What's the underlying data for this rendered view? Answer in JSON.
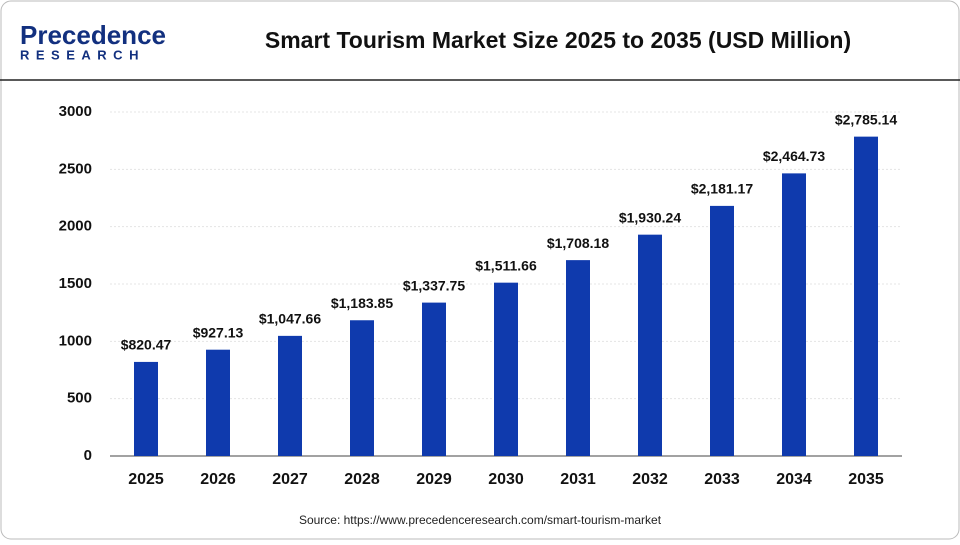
{
  "logo": {
    "name": "Precedence",
    "tagline": "RESEARCH"
  },
  "chart_data": {
    "type": "bar",
    "title": "Smart Tourism Market Size 2025 to 2035 (USD Million)",
    "categories": [
      "2025",
      "2026",
      "2027",
      "2028",
      "2029",
      "2030",
      "2031",
      "2032",
      "2033",
      "2034",
      "2035"
    ],
    "values": [
      820.47,
      927.13,
      1047.66,
      1183.85,
      1337.75,
      1511.66,
      1708.18,
      1930.24,
      2181.17,
      2464.73,
      2785.14
    ],
    "value_labels": [
      "$820.47",
      "$927.13",
      "$1,047.66",
      "$1,183.85",
      "$1,337.75",
      "$1,511.66",
      "$1,708.18",
      "$1,930.24",
      "$2,181.17",
      "$2,464.73",
      "$2,785.14"
    ],
    "color": "#0f3aad",
    "ylim": [
      0,
      3000
    ],
    "yticks": [
      0,
      500,
      1000,
      1500,
      2000,
      2500,
      3000
    ],
    "grid": true,
    "source": "Source: https://www.precedenceresearch.com/smart-tourism-market"
  }
}
